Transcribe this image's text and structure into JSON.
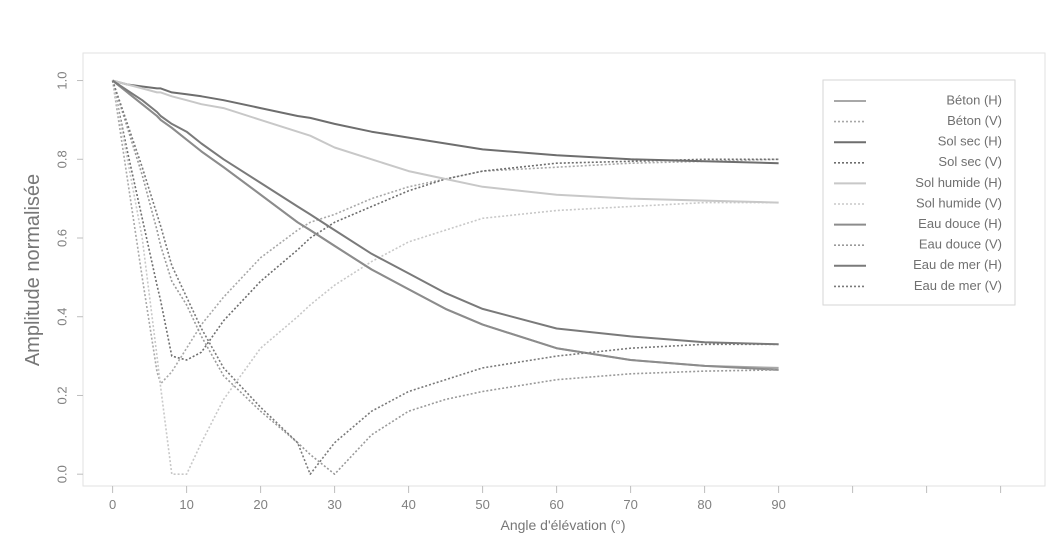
{
  "chart_data": {
    "type": "line",
    "title": "",
    "xlabel": "Angle d'élévation (°)",
    "ylabel": "Amplitude normalisée",
    "xlim": [
      -4,
      126
    ],
    "ylim": [
      -0.03,
      1.07
    ],
    "xticks": [
      "0",
      "10",
      "20",
      "30",
      "40",
      "50",
      "60",
      "70",
      "80",
      "90"
    ],
    "yticks": [
      "0.0",
      "0.2",
      "0.4",
      "0.6",
      "0.8",
      "1.0"
    ],
    "grid": false,
    "legend_position": "top-right",
    "x": [
      0,
      2,
      4,
      6,
      6.5,
      8,
      10,
      12,
      15,
      20,
      25,
      26.7,
      30,
      35,
      40,
      45,
      50,
      60,
      70,
      80,
      90
    ],
    "series": [
      {
        "name": "Béton (H)",
        "style": "solid",
        "color": "#a8a8a8",
        "values": [
          1.0,
          0.97,
          0.94,
          0.91,
          0.9,
          0.88,
          0.85,
          0.82,
          0.78,
          0.71,
          0.64,
          0.62,
          0.58,
          0.52,
          0.47,
          0.42,
          0.38,
          0.32,
          0.29,
          0.275,
          0.27
        ]
      },
      {
        "name": "Béton (V)",
        "style": "dotted",
        "color": "#a8a8a8",
        "values": [
          1.0,
          0.75,
          0.5,
          0.26,
          0.23,
          0.26,
          0.32,
          0.38,
          0.45,
          0.55,
          0.62,
          0.64,
          0.66,
          0.7,
          0.73,
          0.75,
          0.77,
          0.78,
          0.79,
          0.795,
          0.8
        ]
      },
      {
        "name": "Sol sec (H)",
        "style": "solid",
        "color": "#6e6e6e",
        "values": [
          1.0,
          0.99,
          0.985,
          0.98,
          0.98,
          0.97,
          0.965,
          0.96,
          0.95,
          0.93,
          0.91,
          0.905,
          0.89,
          0.87,
          0.855,
          0.84,
          0.825,
          0.81,
          0.8,
          0.795,
          0.79
        ]
      },
      {
        "name": "Sol sec (V)",
        "style": "dotted",
        "color": "#6e6e6e",
        "values": [
          1.0,
          0.82,
          0.65,
          0.48,
          0.44,
          0.3,
          0.29,
          0.31,
          0.39,
          0.49,
          0.57,
          0.6,
          0.64,
          0.68,
          0.72,
          0.75,
          0.77,
          0.79,
          0.795,
          0.8,
          0.8
        ]
      },
      {
        "name": "Sol humide (H)",
        "style": "solid",
        "color": "#c8c8c8",
        "values": [
          1.0,
          0.99,
          0.98,
          0.97,
          0.97,
          0.96,
          0.95,
          0.94,
          0.93,
          0.9,
          0.87,
          0.86,
          0.83,
          0.8,
          0.77,
          0.75,
          0.73,
          0.71,
          0.7,
          0.695,
          0.69
        ]
      },
      {
        "name": "Sol humide (V)",
        "style": "dotted",
        "color": "#c8c8c8",
        "values": [
          1.0,
          0.8,
          0.6,
          0.3,
          0.22,
          0.0,
          0.0,
          0.08,
          0.19,
          0.32,
          0.4,
          0.43,
          0.48,
          0.54,
          0.59,
          0.62,
          0.65,
          0.67,
          0.68,
          0.69,
          0.69
        ]
      },
      {
        "name": "Eau douce (H)",
        "style": "solid",
        "color": "#8c8c8c",
        "values": [
          1.0,
          0.97,
          0.94,
          0.91,
          0.9,
          0.88,
          0.85,
          0.82,
          0.78,
          0.71,
          0.64,
          0.62,
          0.58,
          0.52,
          0.47,
          0.42,
          0.38,
          0.32,
          0.29,
          0.275,
          0.265
        ]
      },
      {
        "name": "Eau douce (V)",
        "style": "dotted",
        "color": "#9a9a9a",
        "values": [
          1.0,
          0.88,
          0.76,
          0.62,
          0.58,
          0.49,
          0.43,
          0.35,
          0.25,
          0.16,
          0.08,
          0.05,
          0.0,
          0.1,
          0.16,
          0.19,
          0.21,
          0.24,
          0.255,
          0.262,
          0.265
        ]
      },
      {
        "name": "Eau de mer (H)",
        "style": "solid",
        "color": "#7a7a7a",
        "values": [
          1.0,
          0.975,
          0.95,
          0.92,
          0.91,
          0.89,
          0.87,
          0.84,
          0.8,
          0.74,
          0.68,
          0.66,
          0.62,
          0.56,
          0.51,
          0.46,
          0.42,
          0.37,
          0.35,
          0.335,
          0.33
        ]
      },
      {
        "name": "Eau de mer (V)",
        "style": "dotted",
        "color": "#7a7a7a",
        "values": [
          1.0,
          0.89,
          0.78,
          0.66,
          0.63,
          0.53,
          0.45,
          0.37,
          0.27,
          0.17,
          0.08,
          0.0,
          0.08,
          0.16,
          0.21,
          0.24,
          0.27,
          0.3,
          0.32,
          0.33,
          0.33
        ]
      }
    ]
  }
}
